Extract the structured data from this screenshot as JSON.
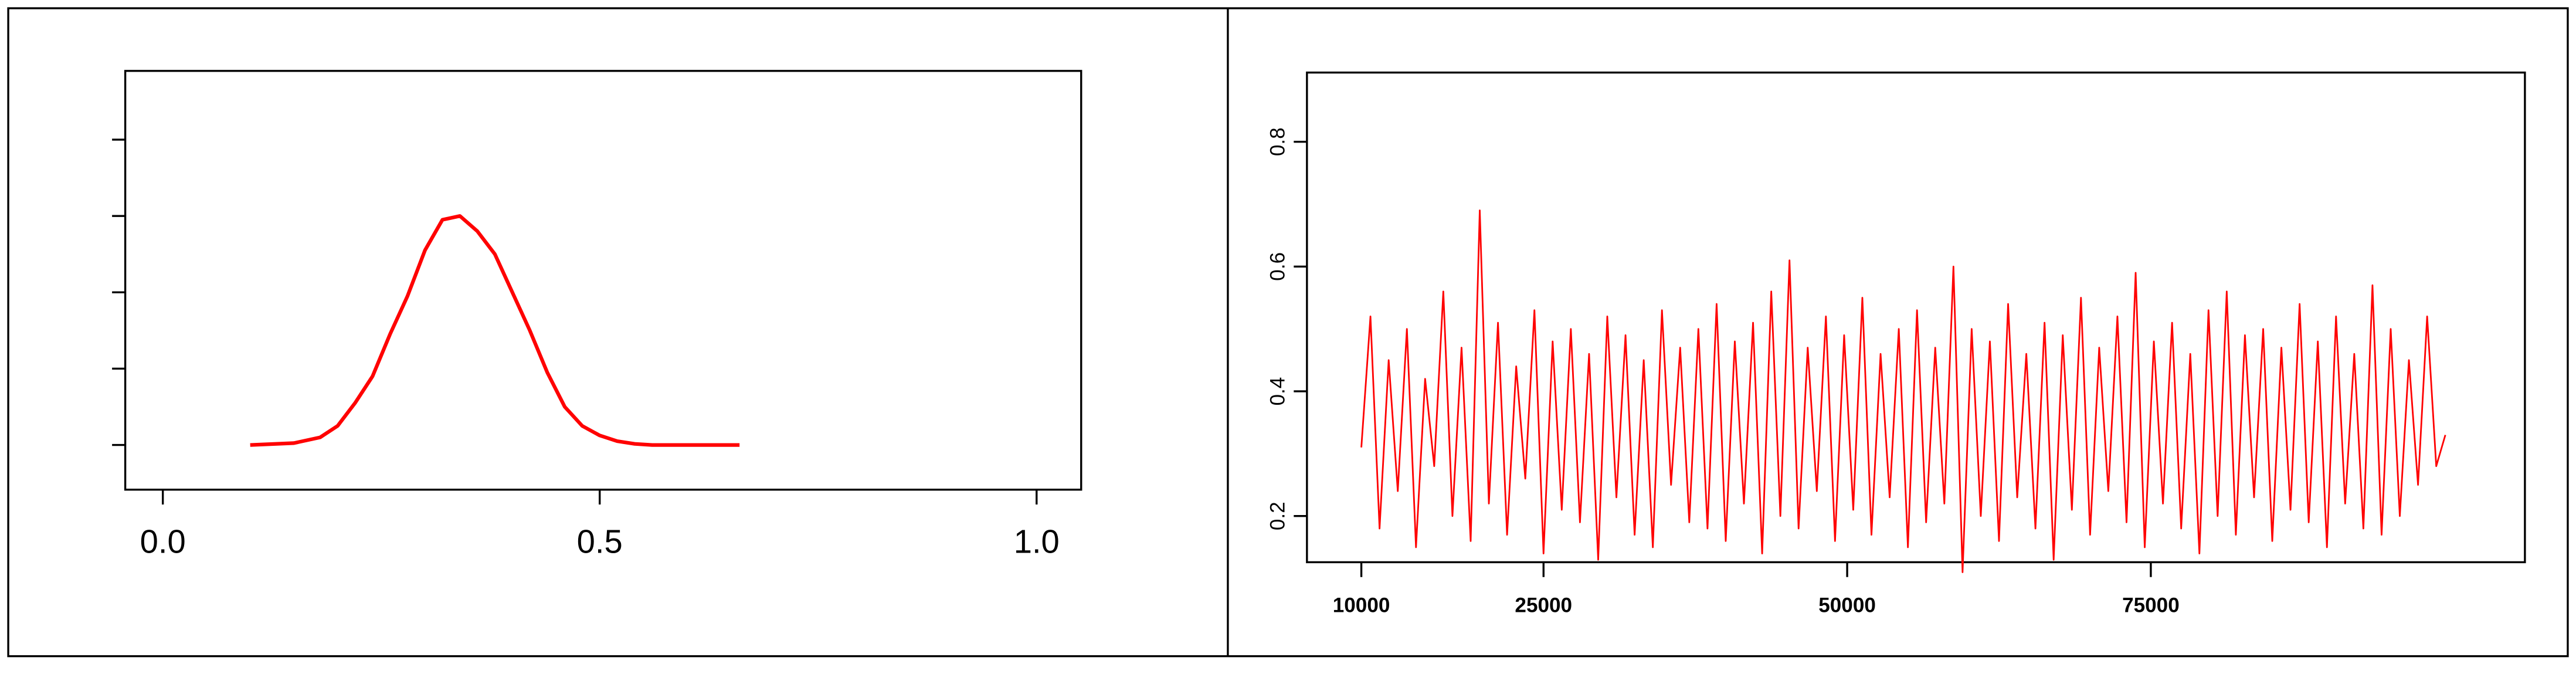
{
  "chart_data": [
    {
      "type": "line",
      "x": [
        0.1,
        0.15,
        0.18,
        0.2,
        0.22,
        0.24,
        0.26,
        0.28,
        0.3,
        0.32,
        0.34,
        0.36,
        0.38,
        0.4,
        0.42,
        0.44,
        0.46,
        0.48,
        0.5,
        0.52,
        0.54,
        0.56,
        0.66
      ],
      "values": [
        0,
        0.05,
        0.2,
        0.5,
        1.1,
        1.8,
        2.9,
        3.9,
        5.1,
        5.9,
        6.0,
        5.6,
        5.0,
        4.0,
        3.0,
        1.9,
        1.0,
        0.5,
        0.25,
        0.1,
        0.03,
        0,
        0
      ],
      "color": "#ff0000",
      "xlim": [
        -0.043,
        1.051
      ],
      "ylim": [
        -1.17,
        9.8
      ],
      "xticks": [
        {
          "value": 0,
          "label": "0.0"
        },
        {
          "value": 0.5,
          "label": "0.5"
        },
        {
          "value": 1,
          "label": "1.0"
        }
      ],
      "yticks": [
        0,
        2,
        4,
        6,
        8
      ],
      "ytick_labels": false
    },
    {
      "type": "line",
      "x": [
        10000,
        10750,
        11500,
        12250,
        13000,
        13750,
        14500,
        15250,
        16000,
        16750,
        17500,
        18250,
        19000,
        19750,
        20500,
        21250,
        22000,
        22750,
        23500,
        24250,
        25000,
        25750,
        26500,
        27250,
        28000,
        28750,
        29500,
        30250,
        31000,
        31750,
        32500,
        33250,
        34000,
        34750,
        35500,
        36250,
        37000,
        37750,
        38500,
        39250,
        40000,
        40750,
        41500,
        42250,
        43000,
        43750,
        44500,
        45250,
        46000,
        46750,
        47500,
        48250,
        49000,
        49750,
        50500,
        51250,
        52000,
        52750,
        53500,
        54250,
        55000,
        55750,
        56500,
        57250,
        58000,
        58750,
        59500,
        60250,
        61000,
        61750,
        62500,
        63250,
        64000,
        64750,
        65500,
        66250,
        67000,
        67750,
        68500,
        69250,
        70000,
        70750,
        71500,
        72250,
        73000,
        73750,
        74500,
        75250,
        76000,
        76750,
        77500,
        78250,
        79000,
        79750,
        80500,
        81250,
        82000,
        82750,
        83500,
        84250,
        85000,
        85750,
        86500,
        87250,
        88000,
        88750,
        89500,
        90250,
        91000,
        91750,
        92500,
        93250,
        94000,
        94750,
        95500,
        96250,
        97000,
        97750,
        98500,
        99250
      ],
      "values": [
        0.31,
        0.52,
        0.18,
        0.45,
        0.24,
        0.5,
        0.15,
        0.42,
        0.28,
        0.56,
        0.2,
        0.47,
        0.16,
        0.69,
        0.22,
        0.51,
        0.17,
        0.44,
        0.26,
        0.53,
        0.14,
        0.48,
        0.21,
        0.5,
        0.19,
        0.46,
        0.13,
        0.52,
        0.23,
        0.49,
        0.17,
        0.45,
        0.15,
        0.53,
        0.25,
        0.47,
        0.19,
        0.5,
        0.18,
        0.54,
        0.16,
        0.48,
        0.22,
        0.51,
        0.14,
        0.56,
        0.2,
        0.61,
        0.18,
        0.47,
        0.24,
        0.52,
        0.16,
        0.49,
        0.21,
        0.55,
        0.17,
        0.46,
        0.23,
        0.5,
        0.15,
        0.53,
        0.19,
        0.47,
        0.22,
        0.6,
        0.11,
        0.5,
        0.2,
        0.48,
        0.16,
        0.54,
        0.23,
        0.46,
        0.18,
        0.51,
        0.13,
        0.49,
        0.21,
        0.55,
        0.17,
        0.47,
        0.24,
        0.52,
        0.19,
        0.59,
        0.15,
        0.48,
        0.22,
        0.51,
        0.18,
        0.46,
        0.14,
        0.53,
        0.2,
        0.56,
        0.17,
        0.49,
        0.23,
        0.5,
        0.16,
        0.47,
        0.21,
        0.54,
        0.19,
        0.48,
        0.15,
        0.52,
        0.22,
        0.46,
        0.18,
        0.57,
        0.17,
        0.5,
        0.2,
        0.45,
        0.25,
        0.52,
        0.28,
        0.33
      ],
      "color": "#ff0000",
      "xlim": [
        5522,
        105800
      ],
      "ylim": [
        0.126,
        0.911
      ],
      "xticks": [
        10000,
        25000,
        50000,
        75000
      ],
      "yticks": [
        0.2,
        0.4,
        0.6,
        0.8
      ],
      "ytick_labels": true
    }
  ]
}
